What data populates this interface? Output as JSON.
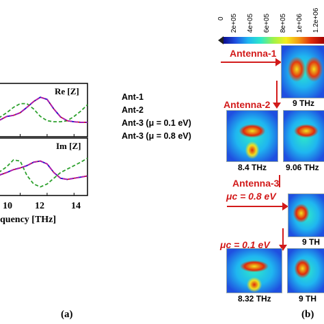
{
  "panel_a": {
    "upper_axis_label": "Re [Z]",
    "lower_axis_label": "Im [Z]",
    "x_ticks": [
      "10",
      "12",
      "14"
    ],
    "x_label": "quency [THz]",
    "figure_label": "(a)"
  },
  "legend": [
    {
      "label": "Ant-1",
      "color": "#2ca02c",
      "dash": "5,3"
    },
    {
      "label": "Ant-2",
      "color": "#e01010",
      "dash": ""
    },
    {
      "label": "Ant-3 (μ = 0.1 eV)",
      "color": "#1a1ad8",
      "dash": "7,2,2,2"
    },
    {
      "label": "Ant-3 (μ = 0.8 eV)",
      "color": "#b01ab0",
      "dash": "6,3"
    }
  ],
  "colorbar": {
    "ticks": [
      "0",
      "2e+05",
      "4e+05",
      "6e+05",
      "8e+05",
      "1e+06",
      "1.2e+06"
    ],
    "marker_icon": "arrow-marker-icon"
  },
  "panel_b": {
    "antenna1_label": "Antenna-1",
    "antenna1_freq": "9 THz",
    "antenna2_label": "Antenna-2",
    "antenna2_freqs": [
      "8.4 THz",
      "9.06 THz"
    ],
    "antenna3_label": "Antenna-3",
    "mu_08_label": "μc = 0.8 eV",
    "mu_08_freq": "9 TH",
    "mu_01_label": "μc = 0.1 eV",
    "mu_01_freqs": [
      "8.32 THz",
      "9 TH"
    ],
    "figure_label": "(b)"
  },
  "chart_data": {
    "type": "line",
    "xlabel": "quency [THz]",
    "xlim": [
      8.4,
      15
    ],
    "x_ticks": [
      10,
      12,
      14
    ],
    "x": [
      8.4,
      9,
      9.5,
      10,
      10.5,
      11,
      11.5,
      12,
      12.5,
      13,
      13.5,
      14,
      14.5,
      15
    ],
    "subplots": [
      {
        "label": "Re [Z]",
        "ylim": [
          0,
          1
        ],
        "series": [
          {
            "name": "Ant-1",
            "values": [
              0.35,
              0.45,
              0.55,
              0.62,
              0.62,
              0.52,
              0.38,
              0.3,
              0.28,
              0.28,
              0.3,
              0.38,
              0.48,
              0.6
            ]
          },
          {
            "name": "Ant-2",
            "values": [
              0.3,
              0.38,
              0.4,
              0.45,
              0.55,
              0.66,
              0.74,
              0.7,
              0.52,
              0.37,
              0.3,
              0.28,
              0.27,
              0.27
            ]
          },
          {
            "name": "Ant-3 (μ = 0.1 eV)",
            "values": [
              0.3,
              0.38,
              0.4,
              0.45,
              0.55,
              0.66,
              0.74,
              0.7,
              0.52,
              0.37,
              0.3,
              0.28,
              0.27,
              0.27
            ]
          },
          {
            "name": "Ant-3 (μ = 0.8 eV)",
            "values": [
              0.3,
              0.38,
              0.4,
              0.45,
              0.55,
              0.66,
              0.74,
              0.7,
              0.52,
              0.37,
              0.3,
              0.28,
              0.27,
              0.27
            ]
          }
        ]
      },
      {
        "label": "Im [Z]",
        "ylim": [
          0,
          1
        ],
        "series": [
          {
            "name": "Ant-1",
            "values": [
              0.4,
              0.5,
              0.62,
              0.6,
              0.35,
              0.2,
              0.15,
              0.2,
              0.3,
              0.4,
              0.46,
              0.52,
              0.58,
              0.65
            ]
          },
          {
            "name": "Ant-2",
            "values": [
              0.35,
              0.4,
              0.45,
              0.48,
              0.52,
              0.58,
              0.6,
              0.55,
              0.4,
              0.3,
              0.28,
              0.3,
              0.32,
              0.34
            ]
          },
          {
            "name": "Ant-3 (μ = 0.1 eV)",
            "values": [
              0.35,
              0.4,
              0.45,
              0.48,
              0.52,
              0.58,
              0.6,
              0.55,
              0.4,
              0.3,
              0.28,
              0.3,
              0.32,
              0.34
            ]
          },
          {
            "name": "Ant-3 (μ = 0.8 eV)",
            "values": [
              0.35,
              0.4,
              0.45,
              0.48,
              0.52,
              0.58,
              0.6,
              0.55,
              0.4,
              0.3,
              0.28,
              0.3,
              0.32,
              0.34
            ]
          }
        ]
      }
    ]
  }
}
